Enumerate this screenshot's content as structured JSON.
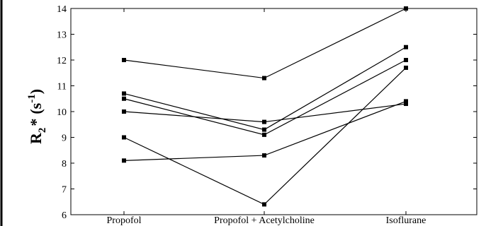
{
  "chart_data": {
    "type": "line",
    "title": "",
    "xlabel": "",
    "ylabel": {
      "main": "R",
      "sub": "2",
      "star": "*",
      "unit_prefix": "(s",
      "unit_exp": "-1",
      "unit_suffix": ")"
    },
    "categories": [
      "Propofol",
      "Propofol + Acetylcholine",
      "Isoflurane"
    ],
    "yticks": [
      6,
      7,
      8,
      9,
      10,
      11,
      12,
      13,
      14
    ],
    "ylim": [
      6,
      14
    ],
    "grid": false,
    "legend": "none",
    "marker": "square",
    "line_color": "#000000",
    "series": [
      {
        "values": [
          12.0,
          11.3,
          14.0
        ]
      },
      {
        "values": [
          10.7,
          9.3,
          12.5
        ]
      },
      {
        "values": [
          10.5,
          9.1,
          12.0
        ]
      },
      {
        "values": [
          10.0,
          9.6,
          10.3
        ]
      },
      {
        "values": [
          9.0,
          6.4,
          11.7
        ]
      },
      {
        "values": [
          8.1,
          8.3,
          10.4
        ]
      }
    ]
  }
}
